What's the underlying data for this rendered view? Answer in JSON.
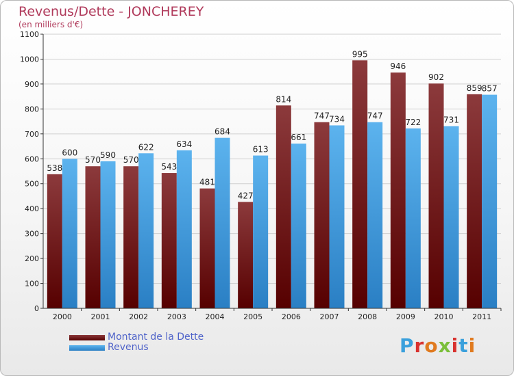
{
  "header": {
    "title": "Revenus/Dette - JONCHEREY",
    "subtitle": "(en milliers d'€)"
  },
  "legend": {
    "items": [
      {
        "label": "Montant de la Dette",
        "color": "#6b0f12"
      },
      {
        "label": "Revenus",
        "color": "#4aa8e8"
      }
    ]
  },
  "logo": {
    "text": "Proxiti"
  },
  "chart_data": {
    "type": "bar",
    "title": "Revenus/Dette - JONCHEREY",
    "subtitle": "(en milliers d'€)",
    "xlabel": "",
    "ylabel": "",
    "ylim": [
      0,
      1100
    ],
    "yticks": [
      0,
      100,
      200,
      300,
      400,
      500,
      600,
      700,
      800,
      900,
      1000,
      1100
    ],
    "grid": true,
    "legend_position": "bottom-left",
    "categories": [
      "2000",
      "2001",
      "2002",
      "2003",
      "2004",
      "2005",
      "2006",
      "2007",
      "2008",
      "2009",
      "2010",
      "2011"
    ],
    "series": [
      {
        "name": "Montant de la Dette",
        "color": "#6b0f12",
        "values": [
          538,
          570,
          570,
          543,
          481,
          427,
          814,
          747,
          995,
          946,
          902,
          859
        ]
      },
      {
        "name": "Revenus",
        "color": "#4aa8e8",
        "values": [
          600,
          590,
          622,
          634,
          684,
          613,
          661,
          734,
          747,
          722,
          731,
          857
        ]
      }
    ]
  }
}
